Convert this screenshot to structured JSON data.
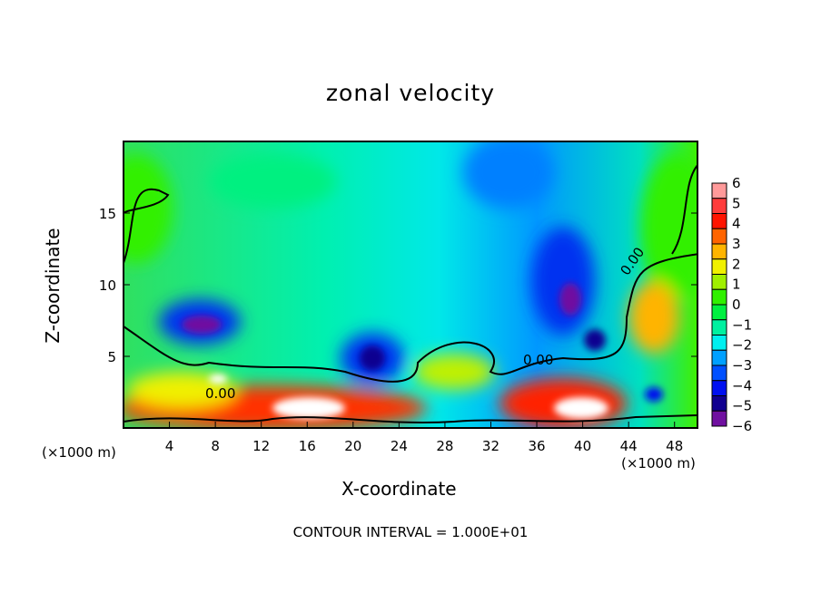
{
  "chart_data": {
    "type": "heatmap",
    "title": "zonal velocity",
    "xlabel": "X-coordinate",
    "ylabel": "Z-coordinate",
    "x_unit": "(×1000 m)",
    "z_unit": "(×1000 m)",
    "xlim": [
      0,
      50
    ],
    "ylim": [
      0,
      20
    ],
    "xticks": [
      4,
      8,
      12,
      16,
      20,
      24,
      28,
      32,
      36,
      40,
      44,
      48
    ],
    "yticks": [
      5,
      10,
      15
    ],
    "colorbar": {
      "ticks": [
        6,
        5,
        4,
        3,
        2,
        1,
        0,
        -1,
        -2,
        -3,
        -4,
        -5,
        -6
      ],
      "colors": [
        "#ff9a9a",
        "#ff3c3c",
        "#ff1400",
        "#ff6400",
        "#ffb400",
        "#f0f000",
        "#a0f000",
        "#30f000",
        "#00f040",
        "#00f0a0",
        "#00f0f0",
        "#00a0ff",
        "#0050ff",
        "#0010f0",
        "#100090",
        "#7010a0"
      ]
    },
    "contour_labels": [
      "0.00",
      "0.00",
      "0.00"
    ],
    "footer": "CONTOUR INTERVAL = 1.000E+01"
  }
}
